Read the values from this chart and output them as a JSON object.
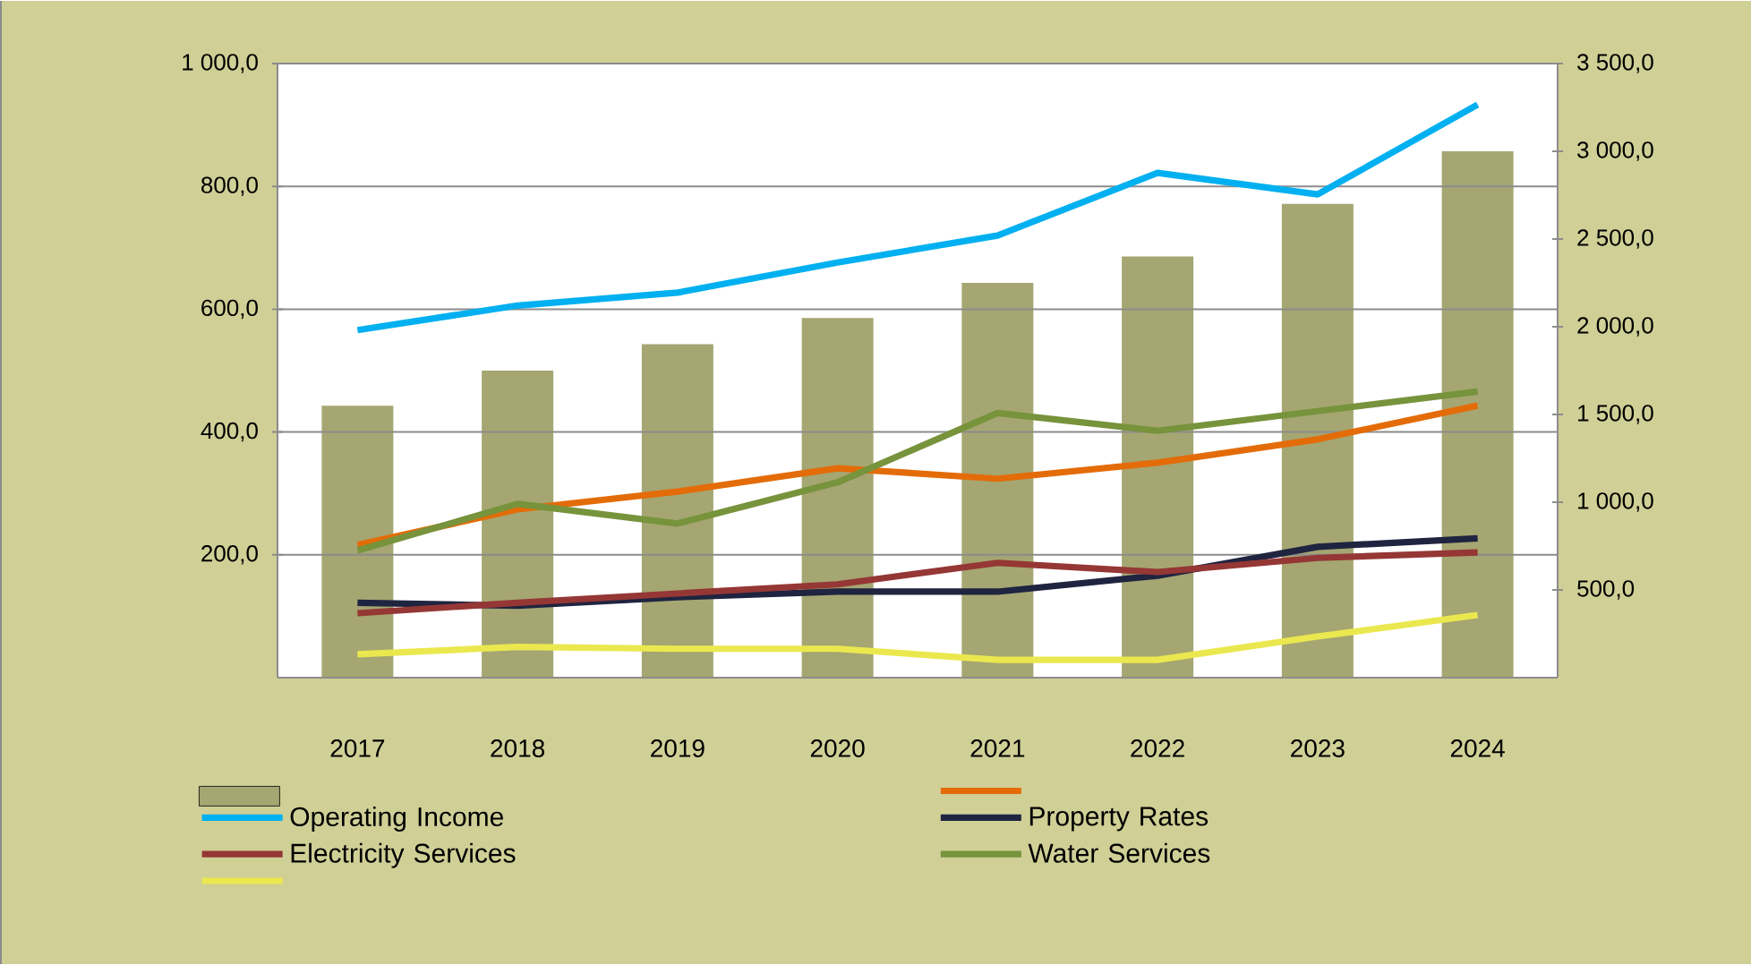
{
  "chart_data": {
    "type": "line",
    "categories": [
      "2017",
      "2018",
      "2019",
      "2020",
      "2021",
      "2022",
      "2023",
      "2024"
    ],
    "series": [
      {
        "type": "bar",
        "axis": "y2",
        "color": "#a5a672",
        "values": [
          1550,
          1750,
          1900,
          2050,
          2250,
          2400,
          2700,
          3000
        ]
      },
      {
        "color": "#e36c09",
        "values": [
          216,
          274,
          303,
          341,
          324,
          350,
          388,
          443
        ]
      },
      {
        "name": "Operating Income",
        "color": "#00b0f0",
        "values": [
          566,
          606,
          627,
          676,
          720,
          822,
          787,
          933
        ]
      },
      {
        "name": "Property Rates",
        "color": "#1f2440",
        "values": [
          122,
          117,
          131,
          140,
          140,
          166,
          213,
          227
        ]
      },
      {
        "name": "Electricity Services",
        "color": "#953735",
        "values": [
          105,
          122,
          137,
          152,
          187,
          172,
          195,
          204
        ]
      },
      {
        "name": "Water Services",
        "color": "#77933c",
        "values": [
          207,
          283,
          251,
          318,
          431,
          402,
          434,
          466
        ]
      },
      {
        "color": "#ebe84f",
        "values": [
          38,
          50,
          47,
          47,
          29,
          29,
          67,
          102
        ]
      }
    ],
    "ylim": [
      0,
      1000
    ],
    "yticks": [
      {
        "value": 200,
        "label": "200,0"
      },
      {
        "value": 400,
        "label": "400,0"
      },
      {
        "value": 600,
        "label": "600,0"
      },
      {
        "value": 800,
        "label": "800,0"
      },
      {
        "value": 1000,
        "label": "1 000,0"
      }
    ],
    "y2lim": [
      0,
      3500
    ],
    "y2ticks": [
      {
        "value": 500,
        "label": "500,0"
      },
      {
        "value": 1000,
        "label": "1 000,0"
      },
      {
        "value": 1500,
        "label": "1 500,0"
      },
      {
        "value": 2000,
        "label": "2 000,0"
      },
      {
        "value": 2500,
        "label": "2 500,0"
      },
      {
        "value": 3000,
        "label": "3 000,0"
      },
      {
        "value": 3500,
        "label": "3 500,0"
      }
    ],
    "grid": "y",
    "legend": "bottom"
  }
}
